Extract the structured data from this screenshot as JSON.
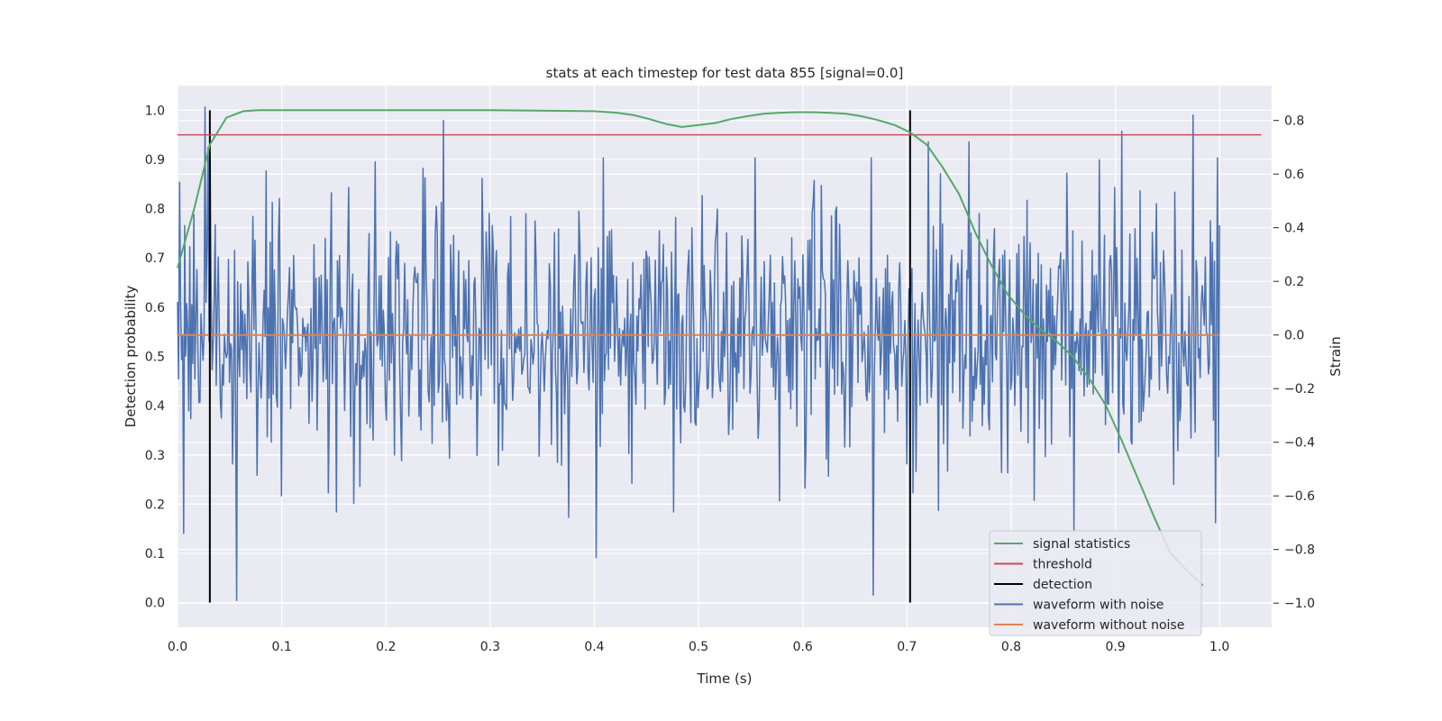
{
  "chart_data": {
    "type": "line",
    "title": "stats at each timestep for test data 855 [signal=0.0]",
    "xlabel": "Time (s)",
    "ylabel": "Detection probability",
    "y2label": "Strain",
    "xlim": [
      0.0,
      1.05
    ],
    "ylim": [
      -0.05,
      1.05
    ],
    "y2lim": [
      -1.09,
      0.93
    ],
    "x_ticks": [
      "0.0",
      "0.1",
      "0.2",
      "0.3",
      "0.4",
      "0.5",
      "0.6",
      "0.7",
      "0.8",
      "0.9",
      "1.0"
    ],
    "y_ticks": [
      "0.0",
      "0.1",
      "0.2",
      "0.3",
      "0.4",
      "0.5",
      "0.6",
      "0.7",
      "0.8",
      "0.9",
      "1.0"
    ],
    "y2_ticks": [
      "−1.0",
      "−0.8",
      "−0.6",
      "−0.4",
      "−0.2",
      "0.0",
      "0.2",
      "0.4",
      "0.6",
      "0.8"
    ],
    "grid": true,
    "legend_position": "lower-right",
    "colors": {
      "signal_statistics": "#55a868",
      "threshold": "#c44e52",
      "detection": "#000000",
      "waveform_with_noise": "#4c72b0",
      "waveform_without_noise": "#dd8452",
      "axes_background": "#eaeaf2",
      "grid": "#ffffff"
    },
    "series": [
      {
        "name": "signal statistics",
        "axis": "left",
        "x": [
          0.0,
          0.016,
          0.031,
          0.047,
          0.063,
          0.078,
          0.094,
          0.2,
          0.3,
          0.4,
          0.422,
          0.438,
          0.453,
          0.469,
          0.484,
          0.5,
          0.516,
          0.531,
          0.547,
          0.563,
          0.578,
          0.594,
          0.609,
          0.625,
          0.641,
          0.656,
          0.672,
          0.688,
          0.703,
          0.719,
          0.734,
          0.75,
          0.766,
          0.781,
          0.797,
          0.813,
          0.828,
          0.844,
          0.859,
          0.875,
          0.891,
          0.906,
          0.922,
          0.938,
          0.953,
          0.969,
          0.984
        ],
        "values": [
          0.68,
          0.8,
          0.93,
          0.985,
          0.998,
          1.0,
          1.0,
          1.0,
          1.0,
          0.998,
          0.995,
          0.99,
          0.982,
          0.972,
          0.966,
          0.97,
          0.974,
          0.982,
          0.988,
          0.993,
          0.995,
          0.996,
          0.996,
          0.995,
          0.993,
          0.988,
          0.98,
          0.97,
          0.955,
          0.93,
          0.885,
          0.83,
          0.75,
          0.685,
          0.625,
          0.585,
          0.555,
          0.53,
          0.5,
          0.455,
          0.4,
          0.33,
          0.25,
          0.17,
          0.1,
          0.065,
          0.035
        ]
      },
      {
        "name": "threshold",
        "axis": "left",
        "x": [
          0.0,
          1.04
        ],
        "values": [
          0.95,
          0.95
        ]
      },
      {
        "name": "detection",
        "axis": "left",
        "type": "vlines",
        "x": [
          0.031,
          0.703
        ],
        "ymin": 0.0,
        "ymax": 1.0
      },
      {
        "name": "waveform with noise",
        "axis": "right",
        "x_start": 0.0,
        "x_end": 1.0,
        "n_points": 1024,
        "seed": 855,
        "std": 0.24,
        "notable": [
          {
            "x": 0.002,
            "y": 0.57
          },
          {
            "x": 0.006,
            "y": -0.74
          },
          {
            "x": 0.026,
            "y": 0.85
          },
          {
            "x": 0.029,
            "y": 0.7
          },
          {
            "x": 0.057,
            "y": -0.99
          },
          {
            "x": 0.1,
            "y": -0.6
          },
          {
            "x": 0.255,
            "y": 0.8
          },
          {
            "x": 0.375,
            "y": -0.68
          },
          {
            "x": 0.402,
            "y": -0.83
          },
          {
            "x": 0.668,
            "y": -0.97
          },
          {
            "x": 0.72,
            "y": 0.72
          },
          {
            "x": 0.76,
            "y": 0.72
          },
          {
            "x": 0.86,
            "y": -0.73
          },
          {
            "x": 0.906,
            "y": 0.76
          },
          {
            "x": 0.975,
            "y": 0.82
          },
          {
            "x": 0.996,
            "y": -0.7
          }
        ]
      },
      {
        "name": "waveform without noise",
        "axis": "right",
        "x": [
          0.0,
          1.0
        ],
        "values": [
          0.0,
          0.0
        ]
      }
    ]
  }
}
